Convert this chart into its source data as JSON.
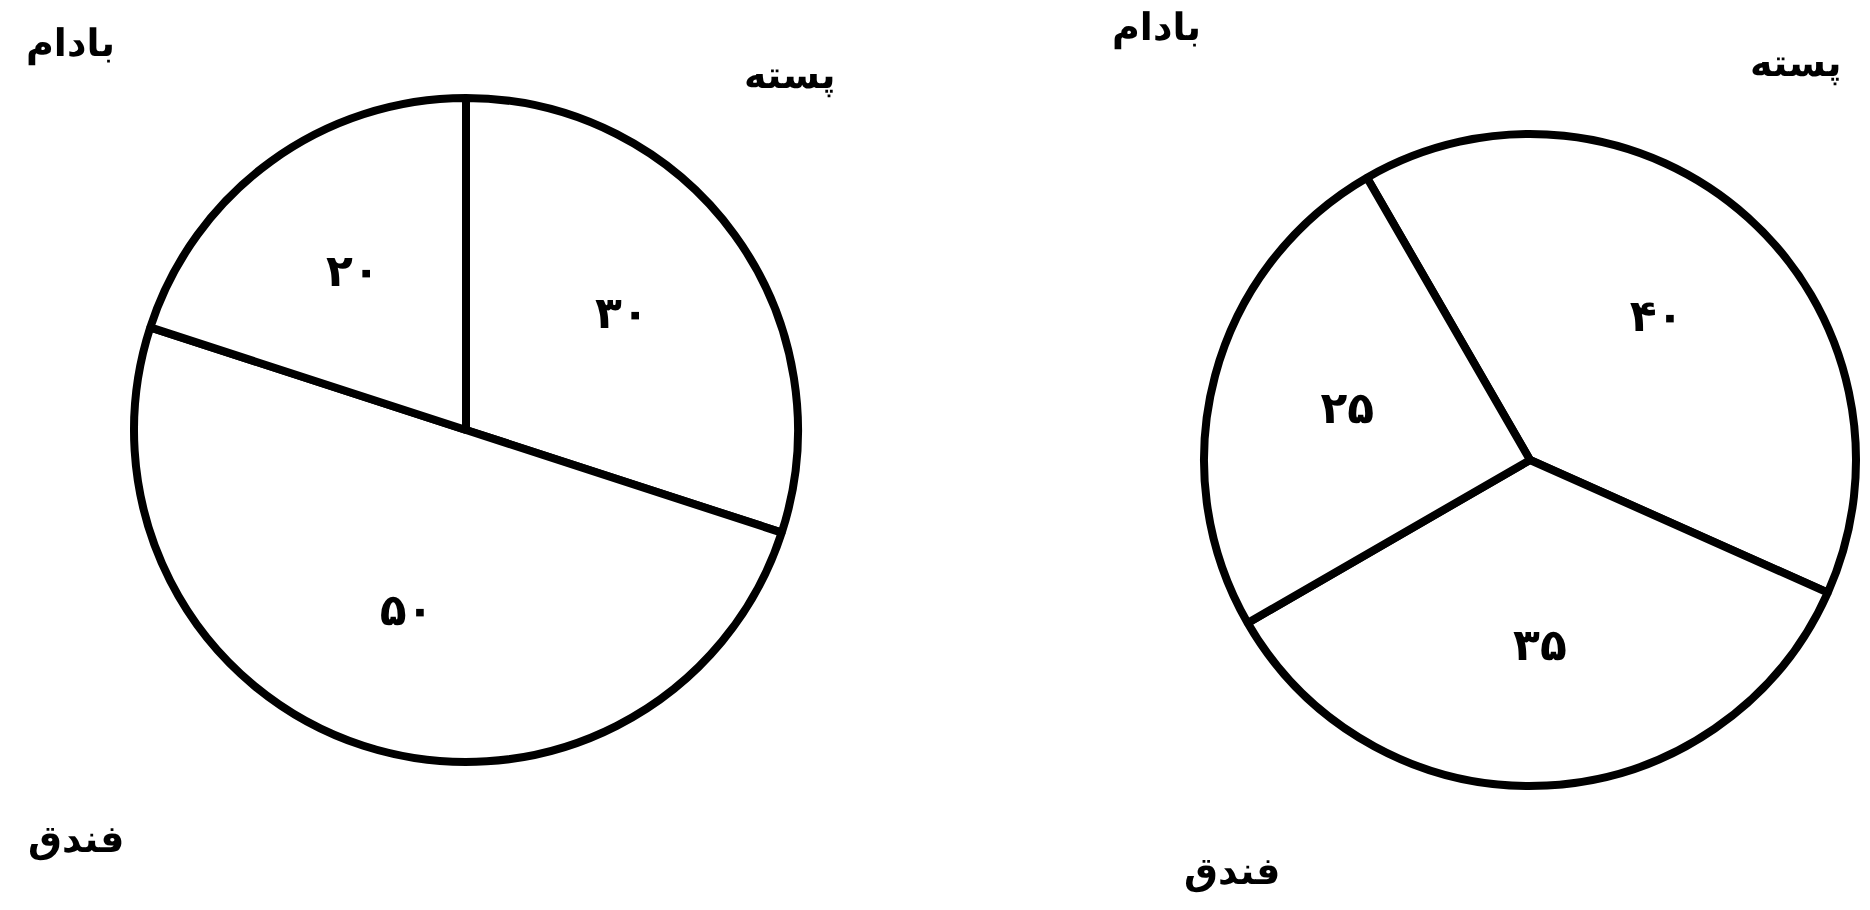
{
  "chart_data": [
    {
      "type": "pie",
      "categories": [
        "پسته",
        "فندق",
        "بادام"
      ],
      "values": [
        30,
        50,
        20
      ],
      "value_labels": [
        "۳۰",
        "۵۰",
        "۲۰"
      ],
      "colors": [
        "#ffffff",
        "#ffffff",
        "#ffffff"
      ],
      "legend": false
    },
    {
      "type": "pie",
      "categories": [
        "پسته",
        "فندق",
        "بادام"
      ],
      "values": [
        40,
        35,
        25
      ],
      "value_labels": [
        "۴۰",
        "۳۵",
        "۲۵"
      ],
      "colors": [
        "#ffffff",
        "#ffffff",
        "#ffffff"
      ],
      "legend": false
    }
  ]
}
